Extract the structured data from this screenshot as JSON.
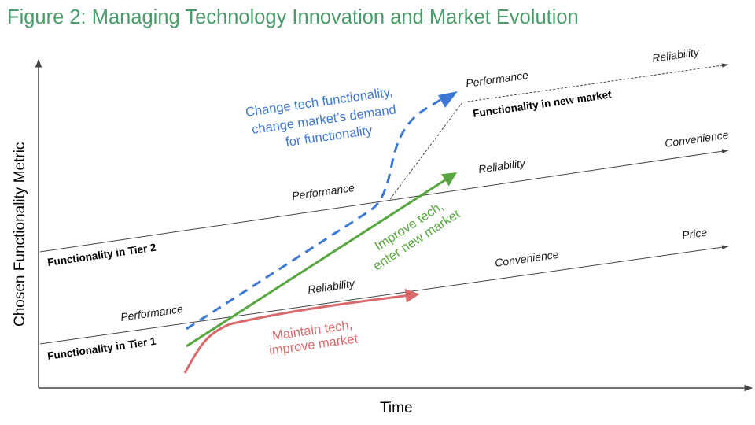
{
  "title": "Figure 2: Managing Technology Innovation and Market Evolution",
  "axes": {
    "x_label": "Time",
    "y_label": "Chosen Functionality Metric"
  },
  "tiers": {
    "tier1": {
      "label": "Functionality in Tier 1",
      "attributes": [
        "Performance",
        "Reliability",
        "Convenience",
        "Price"
      ]
    },
    "tier2": {
      "label": "Functionality in Tier 2",
      "attributes": [
        "Performance",
        "Reliability",
        "Convenience"
      ]
    },
    "new_market": {
      "label": "Functionality in new market",
      "attributes": [
        "Performance",
        "Reliability"
      ]
    }
  },
  "strategies": {
    "blue": {
      "lines": [
        "Change tech functionality,",
        "change market’s demand",
        "for functionality"
      ],
      "color": "#3d79d4"
    },
    "green": {
      "lines": [
        "Improve tech,",
        "enter new market"
      ],
      "color": "#57a63f"
    },
    "red": {
      "lines": [
        "Maintain tech,",
        "improve market"
      ],
      "color": "#d9696b"
    }
  }
}
